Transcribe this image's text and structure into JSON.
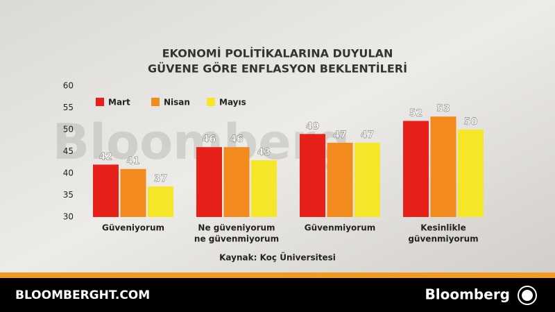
{
  "chart_data": {
    "type": "bar",
    "title": [
      "EKONOMİ POLİTİKALARINA DUYULAN",
      "GÜVENE GÖRE ENFLASYON BEKLENTİLERİ"
    ],
    "categories": [
      [
        "Güveniyorum"
      ],
      [
        "Ne güveniyorum",
        "ne güvenmiyorum"
      ],
      [
        "Güvenmiyorum"
      ],
      [
        "Kesinlikle",
        "güvenmiyorum"
      ]
    ],
    "series": [
      {
        "name": "Mart",
        "color": "#e8201a",
        "values": [
          42,
          46,
          49,
          52
        ]
      },
      {
        "name": "Nisan",
        "color": "#f28a1e",
        "values": [
          41,
          46,
          47,
          53
        ]
      },
      {
        "name": "Mayıs",
        "color": "#f5e62a",
        "values": [
          37,
          43,
          47,
          50
        ]
      }
    ],
    "ylim": [
      30,
      60
    ],
    "yticks": [
      30,
      35,
      40,
      45,
      50,
      55,
      60
    ],
    "grid": false,
    "legend": "top-left",
    "source": "Kaynak: Koç Üniversitesi",
    "watermark": "Bloomberg"
  },
  "footer": {
    "site": "BLOOMBERGHT.COM",
    "brand": "Bloomberg"
  }
}
